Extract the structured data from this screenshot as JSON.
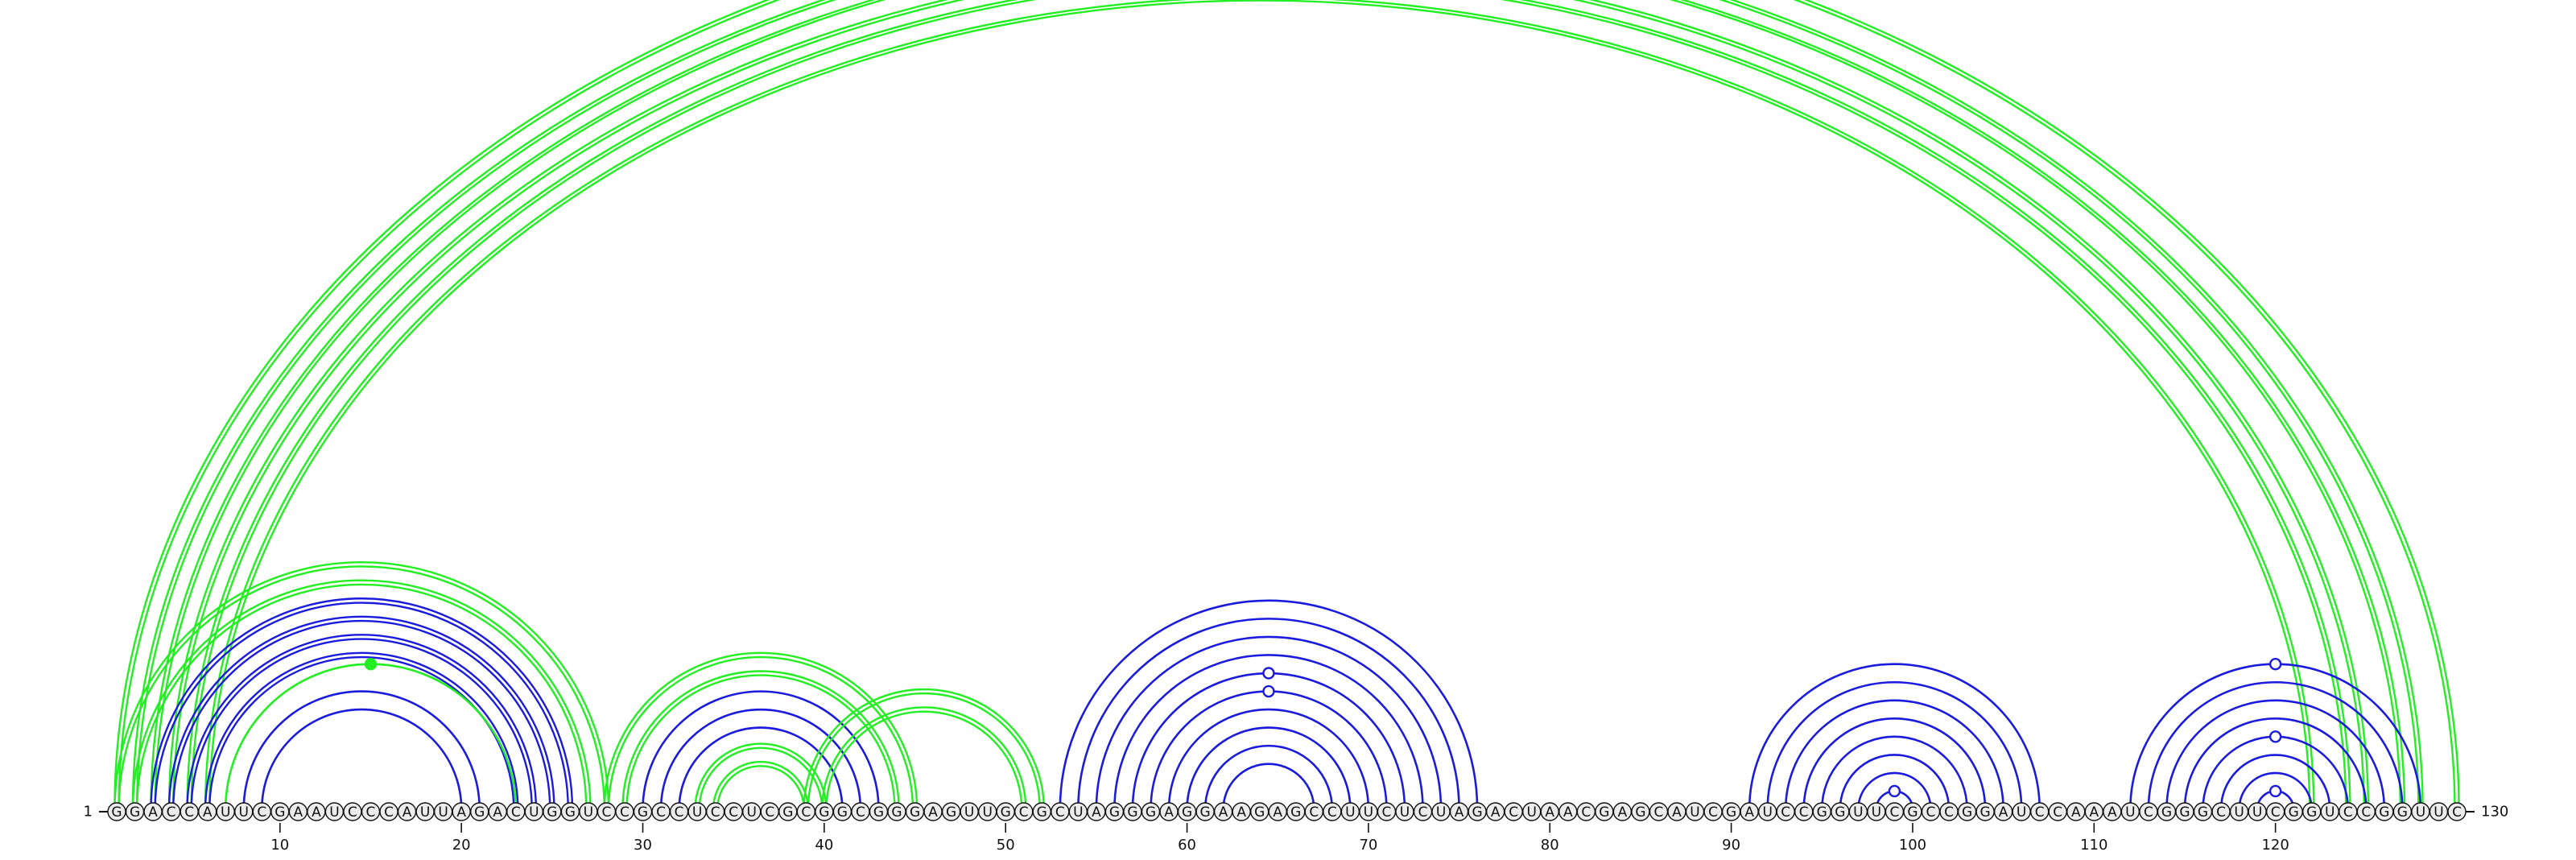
{
  "sequence": "GGACCAUUCGAAUCCCAUUAGACUGGUCCGCCUCCUCGCGGCGGGAGUUGCGCUAGGGAGGAAGAGCCUUCUCUAGACUAACGAGCAUCGAUCCGGUUCGCCGGAUCCAAAUCGGGCUUCGGUCCGGUUC",
  "start_label": "1",
  "end_label": "130",
  "ticks": [
    10,
    20,
    30,
    40,
    50,
    60,
    70,
    80,
    90,
    100,
    110,
    120
  ],
  "colors": {
    "green": "#22ee22",
    "blue": "#1b1bdd",
    "circle_fill": "#ececec",
    "text": "#111111"
  },
  "arc_groups": [
    {
      "name": "long-range-outer",
      "color": "green",
      "double": true,
      "pairs": [
        [
          1,
          130
        ],
        [
          2,
          128
        ],
        [
          3,
          127
        ],
        [
          4,
          125
        ],
        [
          5,
          124
        ],
        [
          6,
          122
        ]
      ]
    },
    {
      "name": "helix-outer",
      "color": "green",
      "double": true,
      "pairs": [
        [
          1,
          28
        ],
        [
          2,
          27
        ]
      ]
    },
    {
      "name": "hairpin-1",
      "color": "blue",
      "double": true,
      "pairs": [
        [
          3,
          26
        ],
        [
          4,
          25
        ],
        [
          5,
          24
        ],
        [
          6,
          23
        ]
      ]
    },
    {
      "name": "hairpin-1-mid",
      "color": "green",
      "double": false,
      "pairs": [
        [
          7,
          23
        ]
      ]
    },
    {
      "name": "hairpin-1-inner",
      "color": "blue",
      "double": false,
      "pairs": [
        [
          8,
          21
        ],
        [
          9,
          20
        ]
      ]
    },
    {
      "name": "pseudoknot-outer",
      "color": "green",
      "double": true,
      "pairs": [
        [
          28,
          45
        ],
        [
          29,
          44
        ]
      ]
    },
    {
      "name": "hairpin-2",
      "color": "blue",
      "double": false,
      "pairs": [
        [
          30,
          43
        ],
        [
          31,
          42
        ],
        [
          32,
          41
        ]
      ]
    },
    {
      "name": "hairpin-2-inner",
      "color": "green",
      "double": true,
      "pairs": [
        [
          33,
          40
        ],
        [
          34,
          39
        ]
      ]
    },
    {
      "name": "pseudoknot-link",
      "color": "green",
      "double": true,
      "pairs": [
        [
          39,
          52
        ],
        [
          40,
          51
        ]
      ]
    },
    {
      "name": "hairpin-3",
      "color": "blue",
      "double": false,
      "pairs": [
        [
          53,
          76
        ],
        [
          54,
          75
        ],
        [
          55,
          74
        ],
        [
          56,
          73
        ],
        [
          57,
          72
        ],
        [
          58,
          71
        ],
        [
          59,
          70
        ],
        [
          60,
          69
        ],
        [
          61,
          68
        ],
        [
          62,
          67
        ]
      ]
    },
    {
      "name": "hairpin-4",
      "color": "blue",
      "double": false,
      "pairs": [
        [
          91,
          107
        ],
        [
          92,
          106
        ],
        [
          93,
          105
        ],
        [
          94,
          104
        ],
        [
          95,
          103
        ],
        [
          96,
          102
        ],
        [
          97,
          101
        ],
        [
          98,
          100
        ]
      ]
    },
    {
      "name": "hairpin-5",
      "color": "blue",
      "double": false,
      "pairs": [
        [
          112,
          128
        ],
        [
          113,
          127
        ],
        [
          114,
          126
        ],
        [
          115,
          125
        ],
        [
          116,
          124
        ],
        [
          117,
          123
        ],
        [
          118,
          122
        ],
        [
          119,
          121
        ]
      ]
    }
  ],
  "markers": [
    {
      "name": "marker-apex-long-range",
      "color": "green",
      "filled": false,
      "on_arc": [
        1,
        130
      ]
    },
    {
      "name": "marker-hairpin-1",
      "color": "green",
      "filled": true,
      "on_arc": [
        7,
        23
      ]
    },
    {
      "name": "marker-hairpin-3-a",
      "color": "blue",
      "filled": false,
      "on_arc": [
        57,
        72
      ]
    },
    {
      "name": "marker-hairpin-3-b",
      "color": "blue",
      "filled": false,
      "on_arc": [
        58,
        71
      ]
    },
    {
      "name": "marker-hairpin-4",
      "color": "blue",
      "filled": false,
      "on_arc": [
        98,
        100
      ]
    },
    {
      "name": "marker-hairpin-5-a",
      "color": "blue",
      "filled": false,
      "on_arc": [
        112,
        128
      ]
    },
    {
      "name": "marker-hairpin-5-b",
      "color": "blue",
      "filled": false,
      "on_arc": [
        116,
        124
      ]
    },
    {
      "name": "marker-hairpin-5-c",
      "color": "blue",
      "filled": false,
      "on_arc": [
        119,
        121
      ]
    }
  ]
}
